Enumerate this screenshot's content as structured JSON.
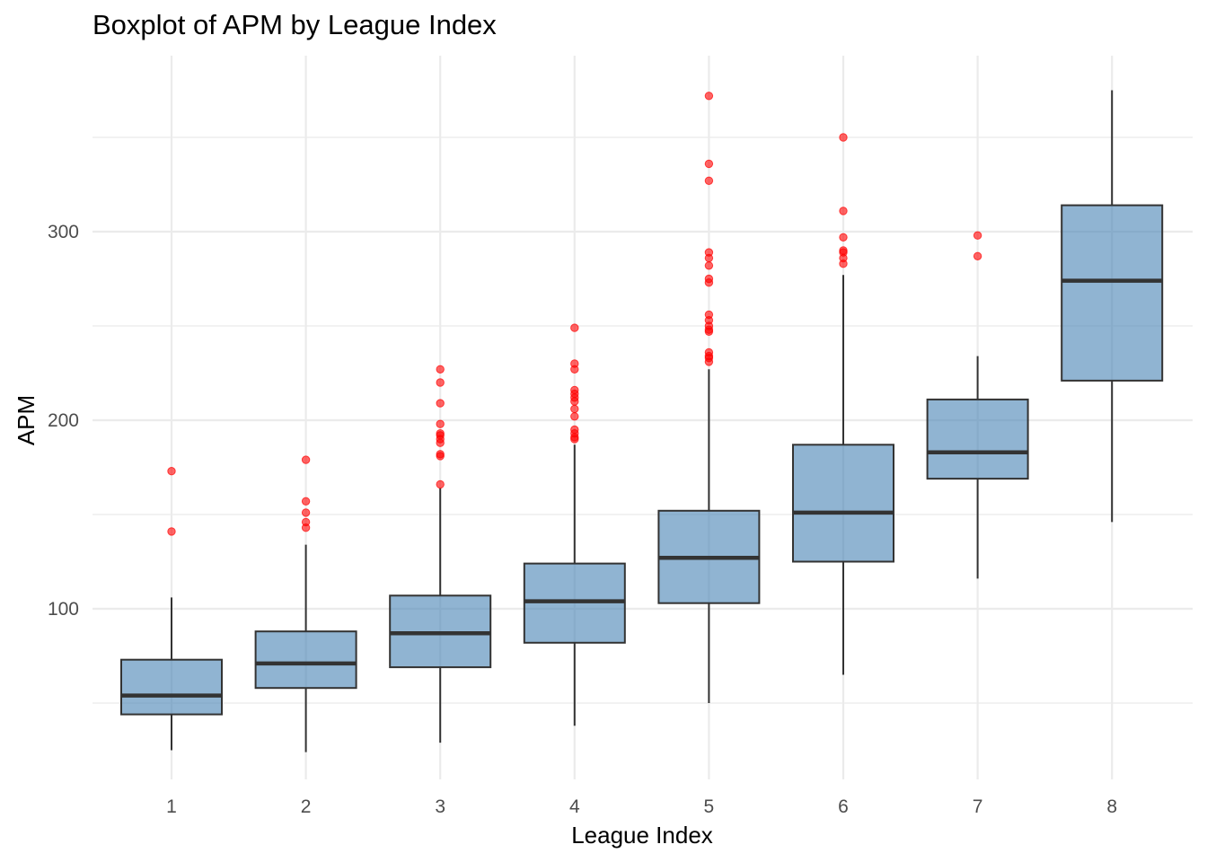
{
  "chart_data": {
    "type": "boxplot",
    "title": "Boxplot of APM by League Index",
    "xlabel": "League Index",
    "ylabel": "APM",
    "categories": [
      "1",
      "2",
      "3",
      "4",
      "5",
      "6",
      "7",
      "8"
    ],
    "y_ticks": [
      100,
      200,
      300
    ],
    "ylim": [
      10,
      385
    ],
    "grid": true,
    "box_fill": "#4682b4",
    "box_fill_opacity": 0.6,
    "box_stroke": "#333333",
    "outlier_color": "#ff0000",
    "series": [
      {
        "category": "1",
        "min": 25,
        "q1": 44,
        "median": 54,
        "q3": 73,
        "max": 106,
        "outliers": [
          173,
          141
        ]
      },
      {
        "category": "2",
        "min": 24,
        "q1": 58,
        "median": 71,
        "q3": 88,
        "max": 134,
        "outliers": [
          179,
          157,
          151,
          146,
          143
        ]
      },
      {
        "category": "3",
        "min": 29,
        "q1": 69,
        "median": 87,
        "q3": 107,
        "max": 164,
        "outliers": [
          227,
          220,
          209,
          198,
          193,
          192,
          190,
          188,
          182,
          181,
          166
        ]
      },
      {
        "category": "4",
        "min": 38,
        "q1": 82,
        "median": 104,
        "q3": 124,
        "max": 187,
        "outliers": [
          249,
          230,
          227,
          216,
          214,
          212,
          210,
          206,
          202,
          195,
          193,
          191,
          190
        ]
      },
      {
        "category": "5",
        "min": 50,
        "q1": 103,
        "median": 127,
        "q3": 152,
        "max": 227,
        "outliers": [
          372,
          336,
          327,
          289,
          286,
          282,
          275,
          273,
          256,
          253,
          250,
          248,
          247,
          236,
          234,
          233,
          231
        ]
      },
      {
        "category": "6",
        "min": 65,
        "q1": 125,
        "median": 151,
        "q3": 187,
        "max": 277,
        "outliers": [
          350,
          311,
          297,
          290,
          289,
          286,
          283
        ]
      },
      {
        "category": "7",
        "min": 116,
        "q1": 169,
        "median": 183,
        "q3": 211,
        "max": 234,
        "outliers": [
          298,
          287
        ]
      },
      {
        "category": "8",
        "min": 146,
        "q1": 221,
        "median": 274,
        "q3": 314,
        "max": 375,
        "outliers": []
      }
    ]
  }
}
